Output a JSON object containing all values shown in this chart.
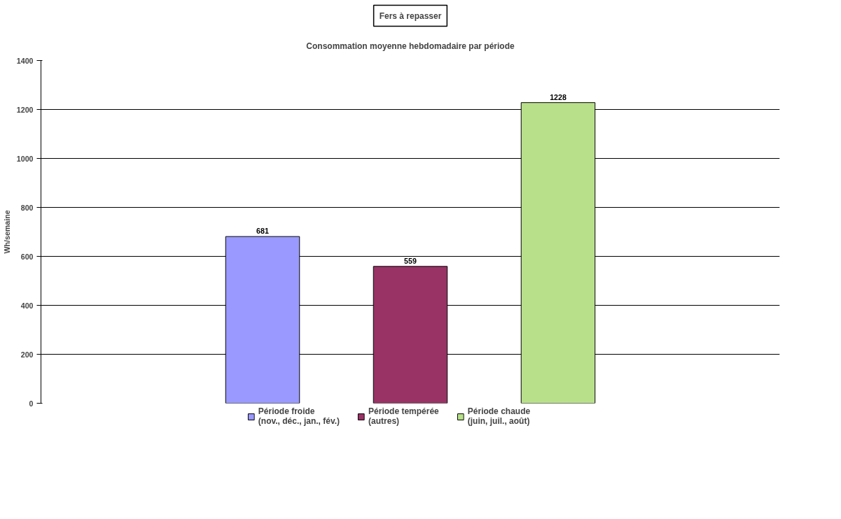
{
  "chart_data": {
    "type": "bar",
    "title": "Fers à repasser",
    "subtitle": "Consommation moyenne hebdomadaire par période",
    "ylabel": "Wh/semaine",
    "categories": [
      null
    ],
    "series": [
      {
        "name": "Période froide\n(nov., déc., jan., fév.)",
        "color": "#9999ff",
        "values": [
          681
        ]
      },
      {
        "name": "Période tempérée\n(autres)",
        "color": "#993366",
        "values": [
          559
        ]
      },
      {
        "name": "Période chaude\n(juin, juil., août)",
        "color": "#b8e08a",
        "values": [
          1228
        ]
      }
    ],
    "ylim": [
      0,
      1400
    ],
    "yticks": [
      0,
      200,
      400,
      600,
      800,
      1000,
      1200,
      1400
    ],
    "grid": "y",
    "legend": "bottom",
    "data_labels": true
  }
}
